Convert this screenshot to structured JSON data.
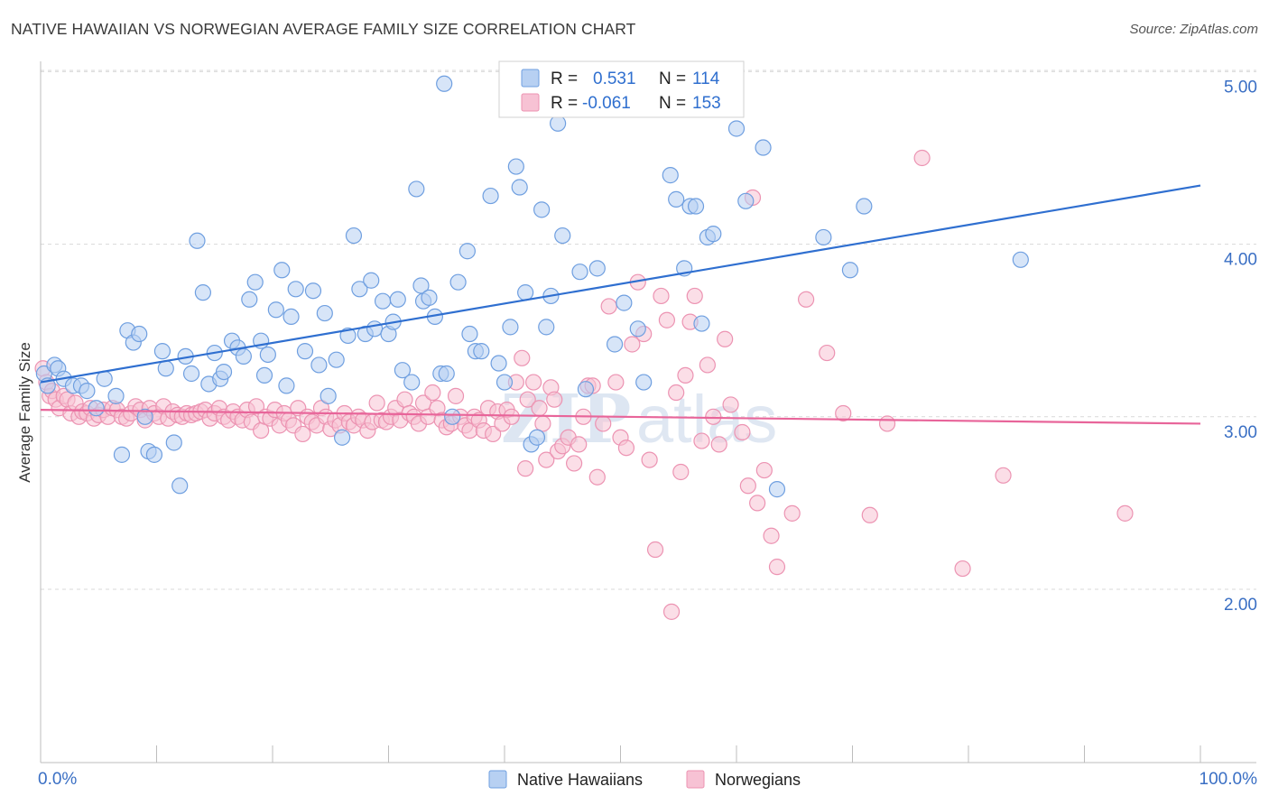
{
  "title": "NATIVE HAWAIIAN VS NORWEGIAN AVERAGE FAMILY SIZE CORRELATION CHART",
  "source": "Source: ZipAtlas.com",
  "watermark": {
    "zip": "ZIP",
    "atlas": "atlas"
  },
  "colors": {
    "blue_fill": "#b7d0f2",
    "blue_stroke": "#6f9fe0",
    "blue_line": "#2f6fd0",
    "pink_fill": "#f7c2d4",
    "pink_stroke": "#ec93b2",
    "pink_line": "#e8659a",
    "grid": "#d9d9d9",
    "tick_text": "#3a6fc4"
  },
  "legend": {
    "r_label": "R =",
    "n_label": "N =",
    "rows": [
      {
        "r": "0.531",
        "n": "114",
        "color": "blue"
      },
      {
        "r": "-0.061",
        "n": "153",
        "color": "pink"
      }
    ]
  },
  "bottom_legend": [
    {
      "label": "Native Hawaiians",
      "color": "blue"
    },
    {
      "label": "Norwegians",
      "color": "pink"
    }
  ],
  "chart_data": {
    "type": "scatter",
    "title": "NATIVE HAWAIIAN VS NORWEGIAN AVERAGE FAMILY SIZE CORRELATION CHART",
    "xlabel": "",
    "ylabel": "Average Family Size",
    "xlim": [
      0,
      100
    ],
    "ylim": [
      1.0,
      5.1
    ],
    "x_tick_labels": [
      "0.0%",
      "100.0%"
    ],
    "y_ticks": [
      2.0,
      3.0,
      4.0,
      5.0
    ],
    "y_tick_labels": [
      "2.00",
      "3.00",
      "4.00",
      "5.00"
    ],
    "grid": "horizontal dashed",
    "legend_position": "top-center",
    "series": [
      {
        "name": "Native Hawaiians",
        "color": "blue",
        "trend": {
          "x": [
            0,
            100
          ],
          "y": [
            3.2,
            4.34
          ]
        },
        "points": [
          [
            0.3,
            3.25
          ],
          [
            0.6,
            3.18
          ],
          [
            1.2,
            3.3
          ],
          [
            1.5,
            3.28
          ],
          [
            2.0,
            3.22
          ],
          [
            2.8,
            3.18
          ],
          [
            3.5,
            3.18
          ],
          [
            4.0,
            3.15
          ],
          [
            4.8,
            3.05
          ],
          [
            5.5,
            3.22
          ],
          [
            6.5,
            3.12
          ],
          [
            7.0,
            2.78
          ],
          [
            7.5,
            3.5
          ],
          [
            8.0,
            3.43
          ],
          [
            8.5,
            3.48
          ],
          [
            9.0,
            3.0
          ],
          [
            9.3,
            2.8
          ],
          [
            9.8,
            2.78
          ],
          [
            10.5,
            3.38
          ],
          [
            10.8,
            3.28
          ],
          [
            11.5,
            2.85
          ],
          [
            12.0,
            2.6
          ],
          [
            12.5,
            3.35
          ],
          [
            13.0,
            3.25
          ],
          [
            13.5,
            4.02
          ],
          [
            14.0,
            3.72
          ],
          [
            14.5,
            3.19
          ],
          [
            15.0,
            3.37
          ],
          [
            15.5,
            3.22
          ],
          [
            15.8,
            3.26
          ],
          [
            16.5,
            3.44
          ],
          [
            17.0,
            3.4
          ],
          [
            17.5,
            3.35
          ],
          [
            18.0,
            3.68
          ],
          [
            18.5,
            3.78
          ],
          [
            19.0,
            3.44
          ],
          [
            19.3,
            3.24
          ],
          [
            19.6,
            3.36
          ],
          [
            20.3,
            3.62
          ],
          [
            20.8,
            3.85
          ],
          [
            21.2,
            3.18
          ],
          [
            21.6,
            3.58
          ],
          [
            22.0,
            3.74
          ],
          [
            22.8,
            3.38
          ],
          [
            23.5,
            3.73
          ],
          [
            24.0,
            3.3
          ],
          [
            24.5,
            3.6
          ],
          [
            24.8,
            3.12
          ],
          [
            25.5,
            3.33
          ],
          [
            26.0,
            2.88
          ],
          [
            26.5,
            3.47
          ],
          [
            27.0,
            4.05
          ],
          [
            27.5,
            3.74
          ],
          [
            28.0,
            3.48
          ],
          [
            28.5,
            3.79
          ],
          [
            28.8,
            3.51
          ],
          [
            29.5,
            3.67
          ],
          [
            30.0,
            3.48
          ],
          [
            30.4,
            3.55
          ],
          [
            30.8,
            3.68
          ],
          [
            31.2,
            3.27
          ],
          [
            32.0,
            3.2
          ],
          [
            32.4,
            4.32
          ],
          [
            32.8,
            3.76
          ],
          [
            33.0,
            3.67
          ],
          [
            33.5,
            3.69
          ],
          [
            34.0,
            3.58
          ],
          [
            34.5,
            3.25
          ],
          [
            34.8,
            4.93
          ],
          [
            35.0,
            3.25
          ],
          [
            35.5,
            3.0
          ],
          [
            36.0,
            3.78
          ],
          [
            36.8,
            3.96
          ],
          [
            37.0,
            3.48
          ],
          [
            37.5,
            3.38
          ],
          [
            38.0,
            3.38
          ],
          [
            38.8,
            4.28
          ],
          [
            39.5,
            3.31
          ],
          [
            40.0,
            3.2
          ],
          [
            40.5,
            3.52
          ],
          [
            41.0,
            4.45
          ],
          [
            41.3,
            4.33
          ],
          [
            41.8,
            3.72
          ],
          [
            42.3,
            2.84
          ],
          [
            42.8,
            2.88
          ],
          [
            43.2,
            4.2
          ],
          [
            43.6,
            3.52
          ],
          [
            44.0,
            3.7
          ],
          [
            44.6,
            4.7
          ],
          [
            45.0,
            4.05
          ],
          [
            46.5,
            3.84
          ],
          [
            47.0,
            3.16
          ],
          [
            48.0,
            3.86
          ],
          [
            49.5,
            3.42
          ],
          [
            50.3,
            3.66
          ],
          [
            51.5,
            3.51
          ],
          [
            52.0,
            3.2
          ],
          [
            54.3,
            4.4
          ],
          [
            54.8,
            4.26
          ],
          [
            55.5,
            3.86
          ],
          [
            56.0,
            4.22
          ],
          [
            56.5,
            4.22
          ],
          [
            57.0,
            3.54
          ],
          [
            57.5,
            4.04
          ],
          [
            58.0,
            4.06
          ],
          [
            60.0,
            4.67
          ],
          [
            60.8,
            4.25
          ],
          [
            62.3,
            4.56
          ],
          [
            63.5,
            2.58
          ],
          [
            67.5,
            4.04
          ],
          [
            69.8,
            3.85
          ],
          [
            71.0,
            4.22
          ],
          [
            84.5,
            3.91
          ]
        ]
      },
      {
        "name": "Norwegians",
        "color": "pink",
        "trend": {
          "x": [
            0,
            100
          ],
          "y": [
            3.04,
            2.96
          ]
        },
        "points": [
          [
            0.2,
            3.28
          ],
          [
            0.5,
            3.2
          ],
          [
            0.8,
            3.12
          ],
          [
            1.0,
            3.15
          ],
          [
            1.3,
            3.1
          ],
          [
            1.6,
            3.05
          ],
          [
            2.0,
            3.12
          ],
          [
            2.3,
            3.1
          ],
          [
            2.6,
            3.02
          ],
          [
            3.0,
            3.08
          ],
          [
            3.3,
            3.0
          ],
          [
            3.6,
            3.03
          ],
          [
            4.0,
            3.02
          ],
          [
            4.3,
            3.05
          ],
          [
            4.6,
            2.99
          ],
          [
            5.0,
            3.01
          ],
          [
            5.4,
            3.04
          ],
          [
            5.8,
            3.0
          ],
          [
            6.2,
            3.05
          ],
          [
            6.6,
            3.04
          ],
          [
            7.0,
            3.0
          ],
          [
            7.4,
            2.99
          ],
          [
            7.8,
            3.02
          ],
          [
            8.2,
            3.06
          ],
          [
            8.6,
            3.04
          ],
          [
            9.0,
            2.98
          ],
          [
            9.4,
            3.05
          ],
          [
            9.8,
            3.02
          ],
          [
            10.2,
            3.0
          ],
          [
            10.6,
            3.06
          ],
          [
            11.0,
            2.99
          ],
          [
            11.4,
            3.03
          ],
          [
            11.8,
            3.01
          ],
          [
            12.2,
            3.0
          ],
          [
            12.6,
            3.02
          ],
          [
            13.0,
            3.01
          ],
          [
            13.4,
            3.02
          ],
          [
            13.8,
            3.03
          ],
          [
            14.2,
            3.04
          ],
          [
            14.6,
            2.99
          ],
          [
            15.0,
            3.02
          ],
          [
            15.4,
            3.05
          ],
          [
            15.8,
            3.0
          ],
          [
            16.2,
            2.98
          ],
          [
            16.6,
            3.03
          ],
          [
            17.0,
            3.0
          ],
          [
            17.4,
            2.98
          ],
          [
            17.8,
            3.04
          ],
          [
            18.2,
            2.97
          ],
          [
            18.6,
            3.06
          ],
          [
            19.0,
            2.92
          ],
          [
            19.4,
            3.0
          ],
          [
            19.8,
            2.99
          ],
          [
            20.2,
            3.04
          ],
          [
            20.6,
            2.95
          ],
          [
            21.0,
            3.02
          ],
          [
            21.4,
            2.98
          ],
          [
            21.8,
            2.95
          ],
          [
            22.2,
            3.05
          ],
          [
            22.6,
            2.9
          ],
          [
            23.0,
            3.0
          ],
          [
            23.4,
            2.97
          ],
          [
            23.8,
            2.95
          ],
          [
            24.2,
            3.05
          ],
          [
            24.6,
            3.0
          ],
          [
            25.0,
            2.93
          ],
          [
            25.4,
            2.98
          ],
          [
            25.8,
            2.95
          ],
          [
            26.2,
            3.02
          ],
          [
            26.6,
            2.97
          ],
          [
            27.0,
            2.95
          ],
          [
            27.4,
            3.0
          ],
          [
            27.8,
            2.98
          ],
          [
            28.2,
            2.92
          ],
          [
            28.6,
            2.97
          ],
          [
            29.0,
            3.08
          ],
          [
            29.4,
            2.98
          ],
          [
            29.8,
            2.97
          ],
          [
            30.2,
            3.0
          ],
          [
            30.6,
            3.05
          ],
          [
            31.0,
            2.98
          ],
          [
            31.4,
            3.1
          ],
          [
            31.8,
            3.02
          ],
          [
            32.2,
            3.0
          ],
          [
            32.6,
            2.96
          ],
          [
            33.0,
            3.08
          ],
          [
            33.4,
            3.0
          ],
          [
            33.8,
            3.14
          ],
          [
            34.2,
            3.05
          ],
          [
            34.6,
            2.98
          ],
          [
            35.0,
            2.94
          ],
          [
            35.4,
            2.96
          ],
          [
            35.8,
            3.12
          ],
          [
            36.2,
            3.0
          ],
          [
            36.6,
            2.95
          ],
          [
            37.0,
            2.92
          ],
          [
            37.4,
            3.0
          ],
          [
            37.8,
            2.98
          ],
          [
            38.2,
            2.92
          ],
          [
            38.6,
            3.05
          ],
          [
            39.0,
            2.9
          ],
          [
            39.4,
            3.03
          ],
          [
            39.8,
            2.96
          ],
          [
            40.2,
            3.04
          ],
          [
            40.6,
            3.0
          ],
          [
            41.0,
            3.2
          ],
          [
            41.5,
            3.34
          ],
          [
            41.8,
            2.7
          ],
          [
            42.0,
            3.1
          ],
          [
            42.5,
            3.2
          ],
          [
            43.0,
            3.05
          ],
          [
            43.3,
            2.96
          ],
          [
            43.6,
            2.75
          ],
          [
            44.0,
            3.17
          ],
          [
            44.3,
            3.1
          ],
          [
            44.6,
            2.8
          ],
          [
            45.0,
            2.83
          ],
          [
            45.5,
            2.88
          ],
          [
            46.0,
            2.73
          ],
          [
            46.4,
            2.84
          ],
          [
            46.8,
            3.0
          ],
          [
            47.2,
            3.18
          ],
          [
            47.6,
            3.18
          ],
          [
            48.0,
            2.65
          ],
          [
            48.5,
            2.96
          ],
          [
            49.0,
            3.64
          ],
          [
            49.6,
            3.2
          ],
          [
            50.0,
            2.88
          ],
          [
            50.5,
            2.82
          ],
          [
            51.0,
            3.42
          ],
          [
            51.5,
            3.78
          ],
          [
            52.0,
            3.48
          ],
          [
            52.5,
            2.75
          ],
          [
            53.0,
            2.23
          ],
          [
            53.5,
            3.7
          ],
          [
            54.0,
            3.56
          ],
          [
            54.4,
            1.87
          ],
          [
            54.8,
            3.14
          ],
          [
            55.2,
            2.68
          ],
          [
            55.6,
            3.24
          ],
          [
            56.0,
            3.55
          ],
          [
            56.4,
            3.7
          ],
          [
            57.0,
            2.86
          ],
          [
            57.5,
            3.3
          ],
          [
            58.0,
            3.0
          ],
          [
            58.5,
            2.84
          ],
          [
            59.0,
            3.45
          ],
          [
            59.5,
            3.07
          ],
          [
            60.5,
            2.91
          ],
          [
            61.0,
            2.6
          ],
          [
            61.4,
            4.27
          ],
          [
            61.8,
            2.5
          ],
          [
            62.4,
            2.69
          ],
          [
            63.0,
            2.31
          ],
          [
            63.5,
            2.13
          ],
          [
            64.8,
            2.44
          ],
          [
            66.0,
            3.68
          ],
          [
            67.8,
            3.37
          ],
          [
            69.2,
            3.02
          ],
          [
            71.5,
            2.43
          ],
          [
            73.0,
            2.96
          ],
          [
            76.0,
            4.5
          ],
          [
            79.5,
            2.12
          ],
          [
            83.0,
            2.66
          ],
          [
            93.5,
            2.44
          ]
        ]
      }
    ]
  }
}
